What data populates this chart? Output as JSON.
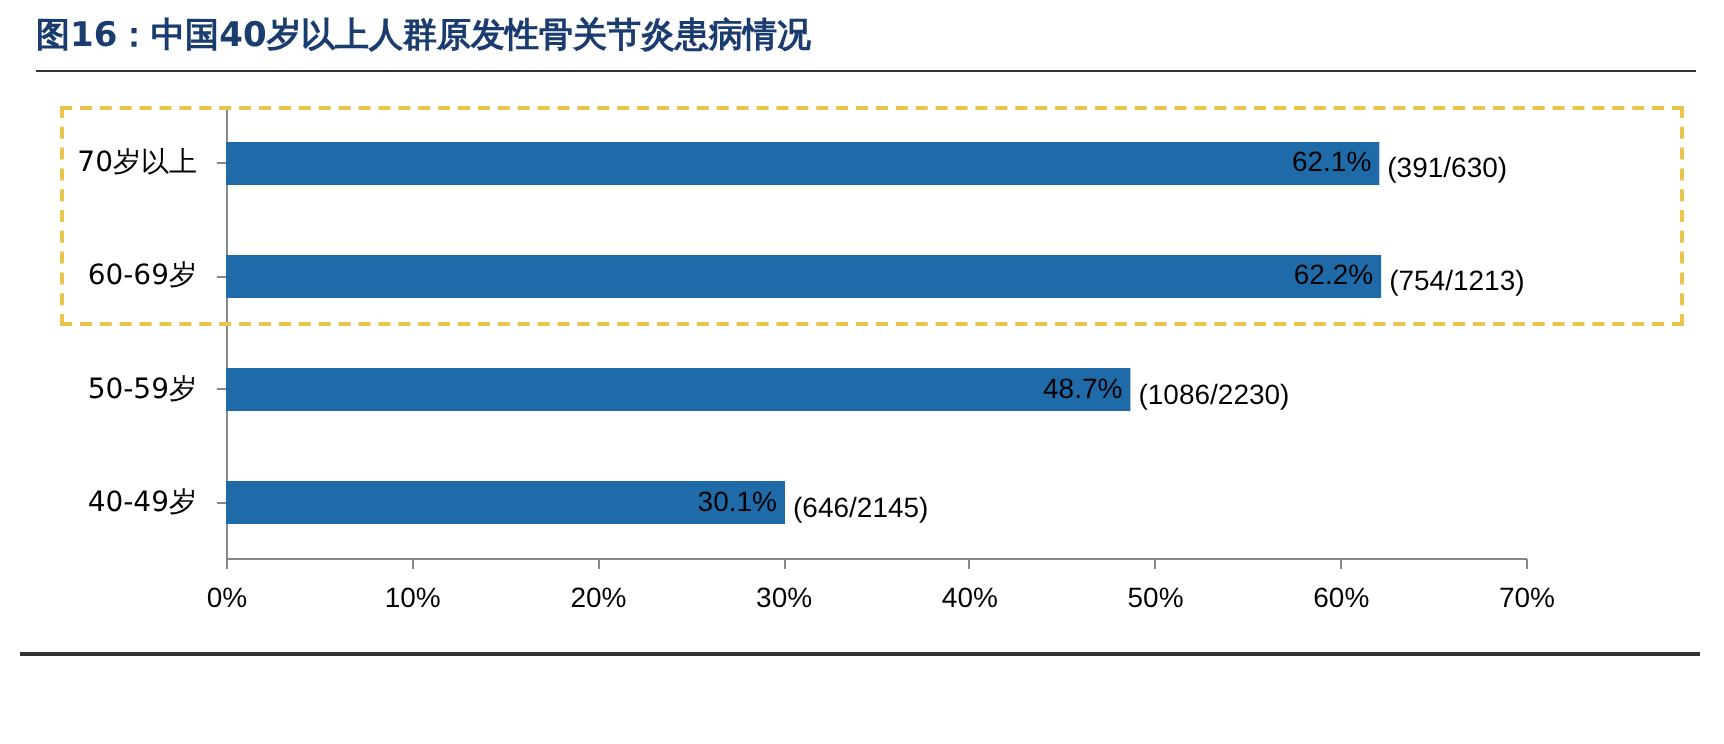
{
  "chart_data": {
    "type": "bar",
    "orientation": "horizontal",
    "title": "图16：中国40岁以上人群原发性骨关节炎患病情况",
    "categories": [
      "70岁以上",
      "60-69岁",
      "50-59岁",
      "40-49岁"
    ],
    "values": [
      62.1,
      62.2,
      48.7,
      30.1
    ],
    "color": "#1f6aa8",
    "value_labels": [
      "62.1%",
      "62.2%",
      "48.7%",
      "30.1%"
    ],
    "xlim": [
      0,
      70
    ],
    "xticks": [
      {
        "value": 0,
        "label": "0%"
      },
      {
        "value": 10,
        "label": "10%"
      },
      {
        "value": 20,
        "label": "20%"
      },
      {
        "value": 30,
        "label": "30%"
      },
      {
        "value": 40,
        "label": "40%"
      },
      {
        "value": 50,
        "label": "50%"
      },
      {
        "value": 60,
        "label": "60%"
      },
      {
        "value": 70,
        "label": "70%"
      }
    ],
    "annotations": [
      {
        "text": "(391/630)",
        "x": 62.1,
        "y": "70岁以上"
      },
      {
        "text": "(754/1213)",
        "x": 62.2,
        "y": "60-69岁"
      },
      {
        "text": "(1086/2230)",
        "x": 48.7,
        "y": "50-59岁"
      },
      {
        "text": "(646/2145)",
        "x": 30.1,
        "y": "40-49岁"
      }
    ],
    "grid": false
  }
}
